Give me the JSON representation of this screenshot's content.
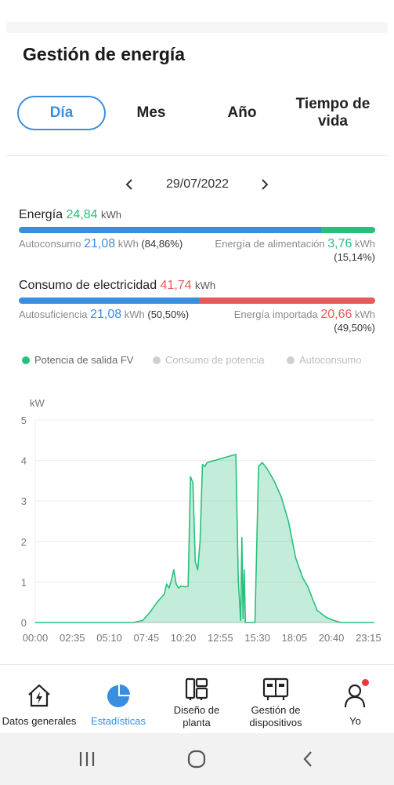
{
  "page": {
    "title": "Gestión de energía"
  },
  "tabs": [
    {
      "label": "Día",
      "active": true
    },
    {
      "label": "Mes",
      "active": false
    },
    {
      "label": "Año",
      "active": false
    },
    {
      "label": "Tiempo de vida",
      "active": false
    }
  ],
  "date": {
    "value": "29/07/2022"
  },
  "energy": {
    "label": "Energía",
    "value": "24,84",
    "unit": "kWh",
    "self_consumption": {
      "label": "Autoconsumo",
      "value": "21,08",
      "unit": "kWh",
      "pct": "(84,86%)",
      "fraction": 0.8486
    },
    "feed_in": {
      "label": "Energía de alimentación",
      "value": "3,76",
      "unit": "kWh",
      "pct": "(15,14%)",
      "fraction": 0.1514
    }
  },
  "consumption": {
    "label": "Consumo de electricidad",
    "value": "41,74",
    "unit": "kWh",
    "self_sufficiency": {
      "label": "Autosuficiencia",
      "value": "21,08",
      "unit": "kWh",
      "pct": "(50,50%)",
      "fraction": 0.505
    },
    "imported": {
      "label": "Energía importada",
      "value": "20,66",
      "unit": "kWh",
      "pct": "(49,50%)",
      "fraction": 0.495
    }
  },
  "colors": {
    "blue": "#3a8ee0",
    "green": "#27c07a",
    "red": "#e85a5a",
    "grey": "#cfcfcf"
  },
  "legend": [
    {
      "label": "Potencia de salida FV",
      "color": "#27c07a",
      "enabled": true
    },
    {
      "label": "Consumo de potencia",
      "color": "#cfcfcf",
      "enabled": false
    },
    {
      "label": "Autoconsumo",
      "color": "#cfcfcf",
      "enabled": false
    }
  ],
  "chart_data": {
    "type": "area",
    "ylabel": "kW",
    "ylim": [
      0,
      5
    ],
    "yticks": [
      0,
      1,
      2,
      3,
      4,
      5
    ],
    "xlim": [
      "00:00",
      "23:40"
    ],
    "xticks": [
      "00:00",
      "02:35",
      "05:10",
      "07:45",
      "10:20",
      "12:55",
      "15:30",
      "18:05",
      "20:40",
      "23:15"
    ],
    "grid": true,
    "series": [
      {
        "name": "Potencia de salida FV",
        "color": "#27c07a",
        "points": [
          [
            "00:00",
            0
          ],
          [
            "06:50",
            0
          ],
          [
            "07:30",
            0.05
          ],
          [
            "08:00",
            0.25
          ],
          [
            "08:30",
            0.5
          ],
          [
            "09:00",
            0.7
          ],
          [
            "09:10",
            0.95
          ],
          [
            "09:20",
            0.85
          ],
          [
            "09:30",
            1.05
          ],
          [
            "09:40",
            1.3
          ],
          [
            "09:50",
            0.95
          ],
          [
            "10:00",
            0.85
          ],
          [
            "10:10",
            0.9
          ],
          [
            "10:30",
            0.88
          ],
          [
            "10:40",
            0.9
          ],
          [
            "10:50",
            3.6
          ],
          [
            "11:00",
            3.45
          ],
          [
            "11:10",
            1.5
          ],
          [
            "11:20",
            1.3
          ],
          [
            "11:30",
            2.0
          ],
          [
            "11:40",
            3.9
          ],
          [
            "11:50",
            3.85
          ],
          [
            "12:00",
            3.95
          ],
          [
            "12:30",
            4.0
          ],
          [
            "13:00",
            4.05
          ],
          [
            "13:30",
            4.1
          ],
          [
            "14:00",
            4.15
          ],
          [
            "14:10",
            1.05
          ],
          [
            "14:20",
            0.05
          ],
          [
            "14:25",
            2.1
          ],
          [
            "14:30",
            0.1
          ],
          [
            "14:35",
            1.3
          ],
          [
            "14:40",
            0.0
          ],
          [
            "15:20",
            0.0
          ],
          [
            "15:35",
            3.85
          ],
          [
            "15:50",
            3.95
          ],
          [
            "16:10",
            3.8
          ],
          [
            "16:40",
            3.5
          ],
          [
            "17:10",
            3.1
          ],
          [
            "17:40",
            2.5
          ],
          [
            "18:10",
            1.6
          ],
          [
            "18:40",
            1.1
          ],
          [
            "19:00",
            0.9
          ],
          [
            "19:20",
            0.6
          ],
          [
            "19:40",
            0.3
          ],
          [
            "20:20",
            0.12
          ],
          [
            "20:50",
            0.05
          ],
          [
            "21:20",
            0.0
          ],
          [
            "23:40",
            0.0
          ]
        ]
      }
    ]
  },
  "bottom_nav": [
    {
      "label": "Datos generales",
      "icon": "home-bolt-icon",
      "active": false
    },
    {
      "label": "Estadísticas",
      "icon": "pie-chart-icon",
      "active": true
    },
    {
      "label": "Diseño de planta",
      "icon": "layout-icon",
      "active": false
    },
    {
      "label": "Gestión de dispositivos",
      "icon": "device-icon",
      "active": false
    },
    {
      "label": "Yo",
      "icon": "user-icon",
      "active": false,
      "notification": true
    }
  ]
}
